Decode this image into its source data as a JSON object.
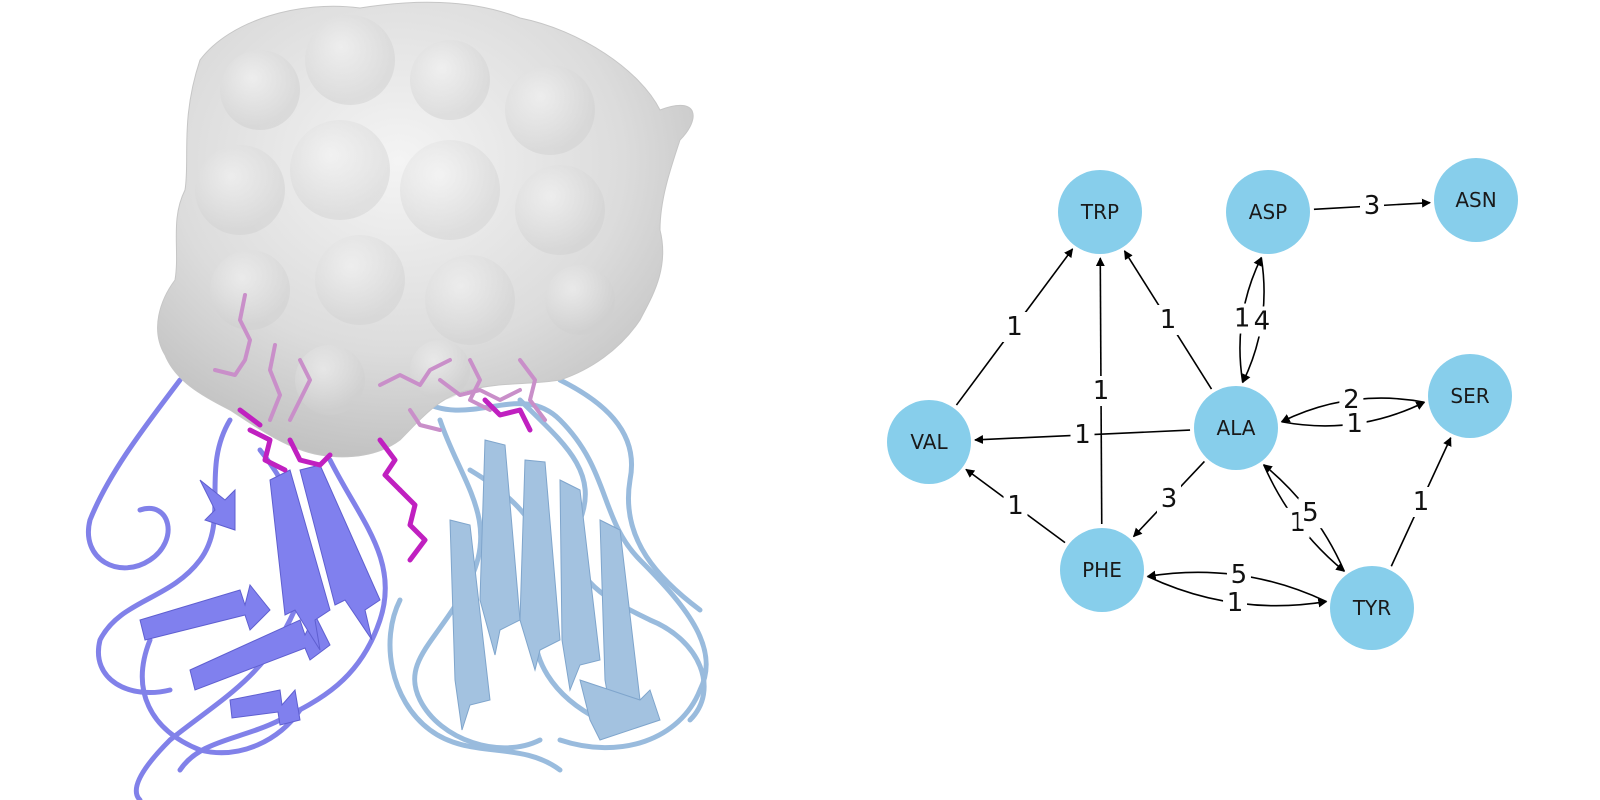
{
  "colors": {
    "background": "#ffffff",
    "node_fill": "#87ceeb",
    "edge": "#000000",
    "surface": "#d9d9d9",
    "chain_a": "#7b7be8",
    "chain_b": "#94b8dc",
    "residues": "#cc33cc"
  },
  "illustration": {
    "icon": "protein-structure-icon"
  },
  "graph": {
    "nodes": [
      {
        "id": "TRP",
        "label": "TRP"
      },
      {
        "id": "ASP",
        "label": "ASP"
      },
      {
        "id": "ASN",
        "label": "ASN"
      },
      {
        "id": "VAL",
        "label": "VAL"
      },
      {
        "id": "ALA",
        "label": "ALA"
      },
      {
        "id": "SER",
        "label": "SER"
      },
      {
        "id": "PHE",
        "label": "PHE"
      },
      {
        "id": "TYR",
        "label": "TYR"
      }
    ],
    "edges": [
      {
        "source": "VAL",
        "target": "TRP",
        "weight": "1"
      },
      {
        "source": "ALA",
        "target": "TRP",
        "weight": "1"
      },
      {
        "source": "PHE",
        "target": "TRP",
        "weight": "1"
      },
      {
        "source": "ASP",
        "target": "ASN",
        "weight": "3"
      },
      {
        "source": "ASP",
        "target": "ALA",
        "weight": "4"
      },
      {
        "source": "ALA",
        "target": "ASP",
        "weight": "1"
      },
      {
        "source": "SER",
        "target": "ALA",
        "weight": "2"
      },
      {
        "source": "ALA",
        "target": "SER",
        "weight": "1"
      },
      {
        "source": "ALA",
        "target": "VAL",
        "weight": "1"
      },
      {
        "source": "PHE",
        "target": "VAL",
        "weight": "1"
      },
      {
        "source": "ALA",
        "target": "PHE",
        "weight": "3"
      },
      {
        "source": "ALA",
        "target": "TYR",
        "weight": "1"
      },
      {
        "source": "TYR",
        "target": "ALA",
        "weight": "5"
      },
      {
        "source": "TYR",
        "target": "SER",
        "weight": "1"
      },
      {
        "source": "TYR",
        "target": "PHE",
        "weight": "5"
      },
      {
        "source": "PHE",
        "target": "TYR",
        "weight": "1"
      }
    ]
  }
}
